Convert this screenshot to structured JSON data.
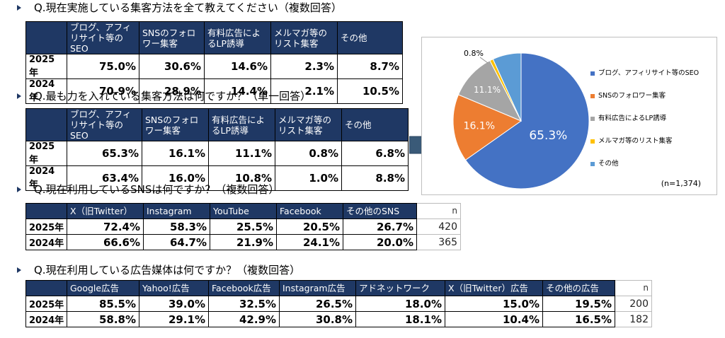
{
  "sections": [
    {
      "question": "Q.現在実施している集客方法を全て教えてください（複数回答）",
      "headers": [
        "ブログ、アフィリサイト等のSEO",
        "SNSのフォロワー集客",
        "有料広告によるLP誘導",
        "メルマガ等のリスト集客",
        "その他"
      ],
      "rows": [
        {
          "year": "2025年",
          "values": [
            "75.0%",
            "30.6%",
            "14.6%",
            "2.3%",
            "8.7%"
          ]
        },
        {
          "year": "2024年",
          "values": [
            "70.9%",
            "28.9%",
            "14.4%",
            "2.1%",
            "10.5%"
          ]
        }
      ]
    },
    {
      "question": "Q.最も力を入れている集客方法は何ですか？（単一回答）",
      "headers": [
        "ブログ、アフィリサイト等のSEO",
        "SNSのフォロワー集客",
        "有料広告によるLP誘導",
        "メルマガ等のリスト集客",
        "その他"
      ],
      "rows": [
        {
          "year": "2025年",
          "values": [
            "65.3%",
            "16.1%",
            "11.1%",
            "0.8%",
            "6.8%"
          ]
        },
        {
          "year": "2024年",
          "values": [
            "63.4%",
            "16.0%",
            "10.8%",
            "1.0%",
            "8.8%"
          ]
        }
      ]
    },
    {
      "question": "Q.現在利用しているSNSは何ですか？（複数回答）",
      "headers": [
        "X（旧Twitter）",
        "Instagram",
        "YouTube",
        "Facebook",
        "その他のSNS"
      ],
      "n_label": "n",
      "rows": [
        {
          "year": "2025年",
          "values": [
            "72.4%",
            "58.3%",
            "25.5%",
            "20.5%",
            "26.7%"
          ],
          "n": "420"
        },
        {
          "year": "2024年",
          "values": [
            "66.6%",
            "64.7%",
            "21.9%",
            "24.1%",
            "20.0%"
          ],
          "n": "365"
        }
      ]
    },
    {
      "question": "Q.現在利用している広告媒体は何ですか？（複数回答）",
      "headers": [
        "Google広告",
        "Yahoo!広告",
        "Facebook広告",
        "Instagram広告",
        "アドネットワーク",
        "X（旧Twitter）広告",
        "その他の広告"
      ],
      "n_label": "n",
      "rows": [
        {
          "year": "2025年",
          "values": [
            "85.5%",
            "39.0%",
            "32.5%",
            "26.5%",
            "18.0%",
            "15.0%",
            "19.5%"
          ],
          "n": "200"
        },
        {
          "year": "2024年",
          "values": [
            "58.8%",
            "29.1%",
            "42.9%",
            "30.8%",
            "18.1%",
            "10.4%",
            "16.5%"
          ],
          "n": "182"
        }
      ]
    }
  ],
  "chart_data": {
    "type": "pie",
    "categories": [
      "ブログ、アフィリサイト等のSEO",
      "SNSのフォロワー集客",
      "有料広告によるLP誘導",
      "メルマガ等のリスト集客",
      "その他"
    ],
    "values": [
      65.3,
      16.1,
      11.1,
      0.8,
      6.8
    ],
    "slice_labels": [
      "65.3%",
      "16.1%",
      "11.1%",
      "0.8%",
      ""
    ],
    "colors": [
      "#4472c4",
      "#ed7d31",
      "#a5a5a5",
      "#ffc000",
      "#5b9bd5"
    ],
    "legend": "right",
    "note": "(n=1,374)"
  },
  "colors": {
    "header_bg": "#1f3864",
    "header_text": "#ffffff",
    "arrow": "#1f3864"
  }
}
